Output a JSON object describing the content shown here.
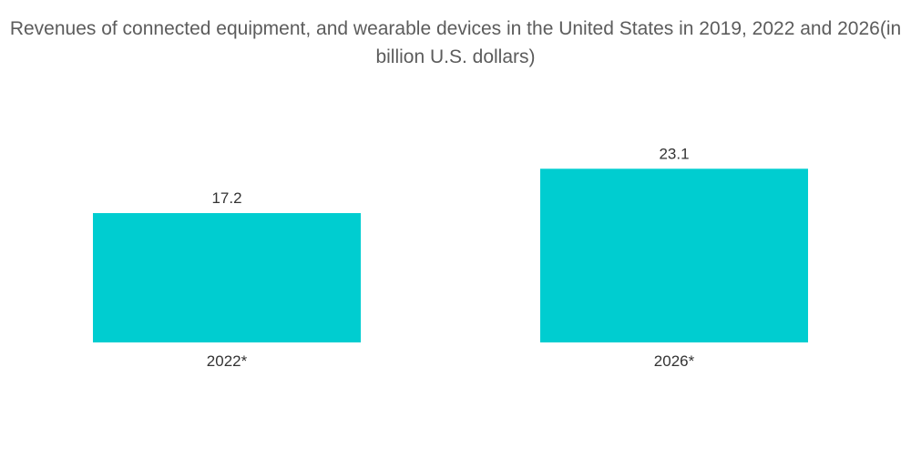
{
  "chart_data": {
    "type": "bar",
    "title": "Revenues of connected equipment, and wearable devices in the United States in 2019, 2022 and 2026(in billion U.S. dollars)",
    "categories": [
      "2022*",
      "2026*"
    ],
    "values": [
      17.2,
      23.1
    ],
    "xlabel": "",
    "ylabel": "",
    "grid": false,
    "legend": "none",
    "data_labels": true,
    "color": "#00cdd0"
  }
}
